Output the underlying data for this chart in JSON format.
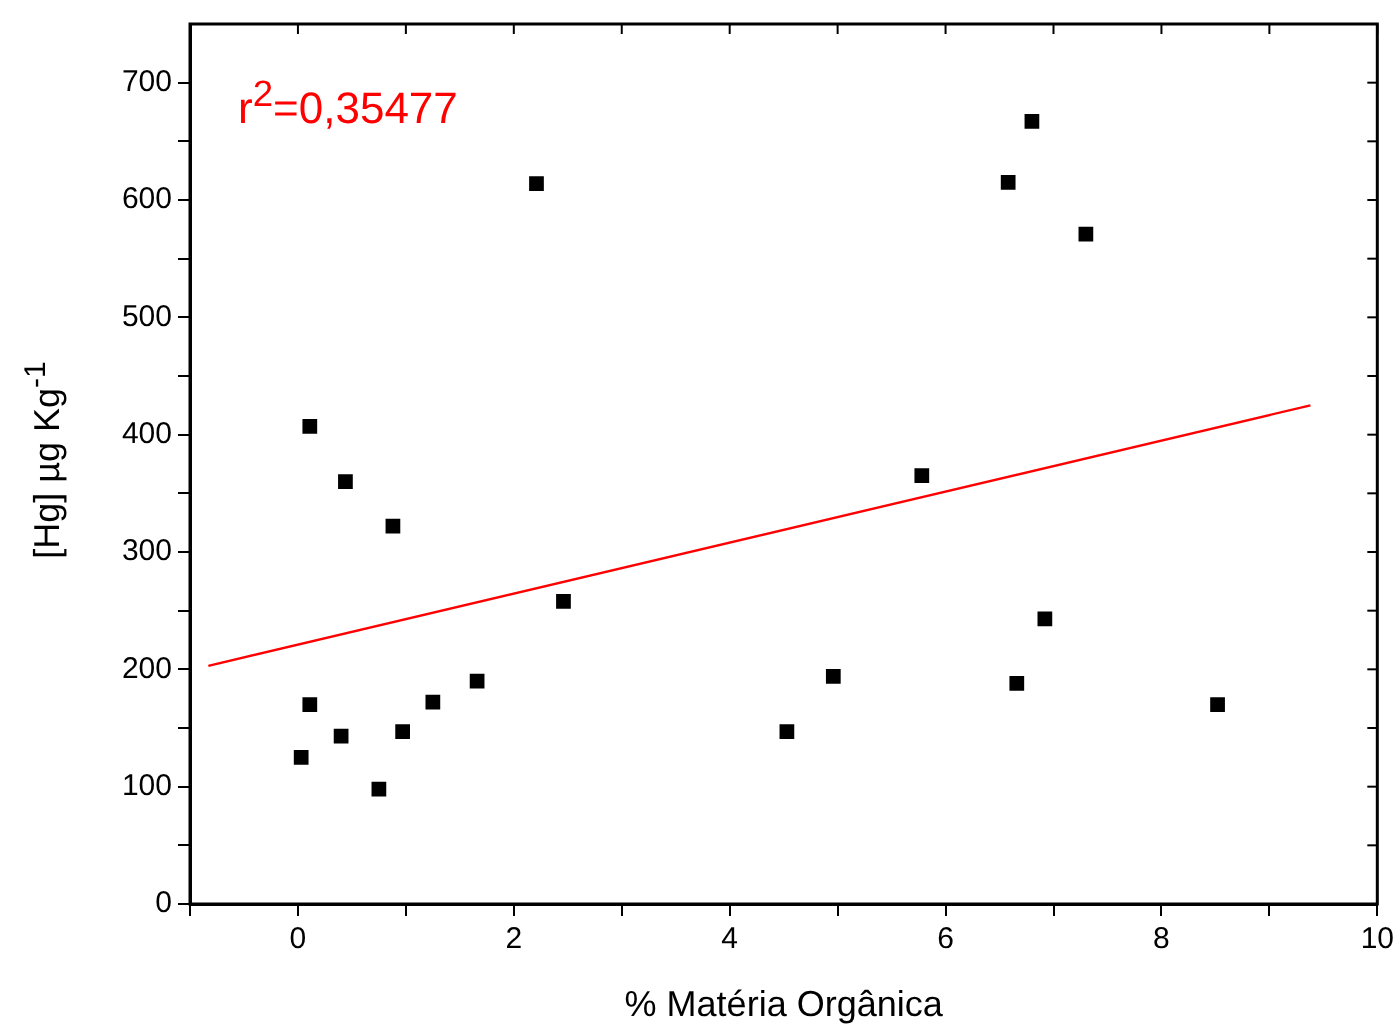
{
  "chart_data": {
    "type": "scatter",
    "xlabel": "% Matéria Orgânica",
    "ylabel": "[Hg] µg Kg$^{-1}$",
    "annotations": [
      "r$^{2}$=0,35477"
    ],
    "xlim": [
      -1,
      10
    ],
    "ylim": [
      0,
      750
    ],
    "xticks": [
      {
        "value": -1,
        "label": null
      },
      0,
      {
        "value": 1,
        "label": null
      },
      2,
      {
        "value": 3,
        "label": null
      },
      4,
      {
        "value": 5,
        "label": null
      },
      6,
      {
        "value": 7,
        "label": null
      },
      8,
      {
        "value": 9,
        "label": null
      },
      10
    ],
    "yticks": [
      0,
      {
        "value": 50,
        "label": null
      },
      100,
      {
        "value": 150,
        "label": null
      },
      200,
      {
        "value": 250,
        "label": null
      },
      300,
      {
        "value": 350,
        "label": null
      },
      400,
      {
        "value": 450,
        "label": null
      },
      500,
      {
        "value": 550,
        "label": null
      },
      600,
      {
        "value": 650,
        "label": null
      },
      700
    ],
    "marker": "square",
    "grid": false,
    "legend": false,
    "series": [
      {
        "type": "scatter",
        "color": "#000000",
        "x": [
          0.03,
          0.11,
          0.11,
          0.4,
          0.44,
          0.75,
          0.88,
          0.97,
          1.25,
          1.66,
          2.21,
          2.46,
          4.53,
          4.96,
          5.78,
          6.58,
          6.8,
          6.66,
          6.92,
          7.3,
          8.52
        ],
        "values": [
          125,
          170,
          407,
          143,
          360,
          98,
          322,
          147,
          172,
          190,
          614,
          258,
          147,
          194,
          365,
          615,
          667,
          188,
          243,
          571,
          170
        ]
      },
      {
        "type": "line",
        "color": "#ff0000",
        "marker": "none",
        "x": [
          -0.83,
          9.38
        ],
        "values": [
          203,
          425
        ]
      }
    ]
  }
}
